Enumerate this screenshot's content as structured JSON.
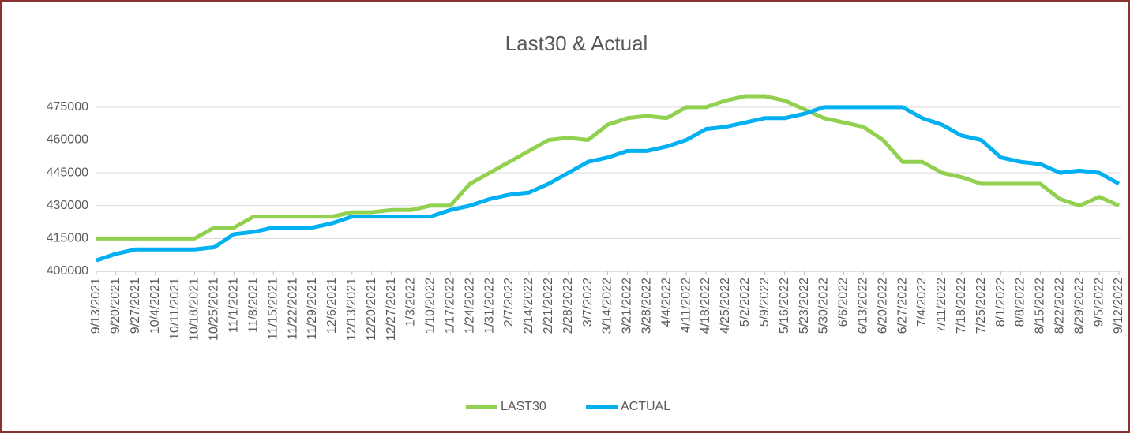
{
  "chart_data": {
    "type": "line",
    "title": "Last30 & Actual",
    "categories": [
      "9/13/2021",
      "9/20/2021",
      "9/27/2021",
      "10/4/2021",
      "10/11/2021",
      "10/18/2021",
      "10/25/2021",
      "11/1/2021",
      "11/8/2021",
      "11/15/2021",
      "11/22/2021",
      "11/29/2021",
      "12/6/2021",
      "12/13/2021",
      "12/20/2021",
      "12/27/2021",
      "1/3/2022",
      "1/10/2022",
      "1/17/2022",
      "1/24/2022",
      "1/31/2022",
      "2/7/2022",
      "2/14/2022",
      "2/21/2022",
      "2/28/2022",
      "3/7/2022",
      "3/14/2022",
      "3/21/2022",
      "3/28/2022",
      "4/4/2022",
      "4/11/2022",
      "4/18/2022",
      "4/25/2022",
      "5/2/2022",
      "5/9/2022",
      "5/16/2022",
      "5/23/2022",
      "5/30/2022",
      "6/6/2022",
      "6/13/2022",
      "6/20/2022",
      "6/27/2022",
      "7/4/2022",
      "7/11/2022",
      "7/18/2022",
      "7/25/2022",
      "8/1/2022",
      "8/8/2022",
      "8/15/2022",
      "8/22/2022",
      "8/29/2022",
      "9/5/2022",
      "9/12/2022"
    ],
    "series": [
      {
        "name": "LAST30",
        "color": "#92d050",
        "values": [
          415000,
          415000,
          415000,
          415000,
          415000,
          415000,
          420000,
          420000,
          425000,
          425000,
          425000,
          425000,
          425000,
          427000,
          427000,
          428000,
          428000,
          430000,
          430000,
          440000,
          445000,
          450000,
          455000,
          460000,
          461000,
          460000,
          467000,
          470000,
          471000,
          470000,
          475000,
          475000,
          478000,
          480000,
          480000,
          478000,
          474000,
          470000,
          468000,
          466000,
          460000,
          450000,
          450000,
          445000,
          443000,
          440000,
          440000,
          440000,
          440000,
          433000,
          430000,
          434000,
          430000
        ]
      },
      {
        "name": "ACTUAL",
        "color": "#00b0f0",
        "values": [
          405000,
          408000,
          410000,
          410000,
          410000,
          410000,
          411000,
          417000,
          418000,
          420000,
          420000,
          420000,
          422000,
          425000,
          425000,
          425000,
          425000,
          425000,
          428000,
          430000,
          433000,
          435000,
          436000,
          440000,
          445000,
          450000,
          452000,
          455000,
          455000,
          457000,
          460000,
          465000,
          466000,
          468000,
          470000,
          470000,
          472000,
          475000,
          475000,
          475000,
          475000,
          475000,
          470000,
          467000,
          462000,
          460000,
          452000,
          450000,
          449000,
          445000,
          446000,
          445000,
          440000
        ]
      }
    ],
    "ylim": [
      400000,
      480000
    ],
    "yticks": [
      400000,
      415000,
      430000,
      445000,
      460000,
      475000
    ],
    "grid": true,
    "legend": "bottom"
  }
}
